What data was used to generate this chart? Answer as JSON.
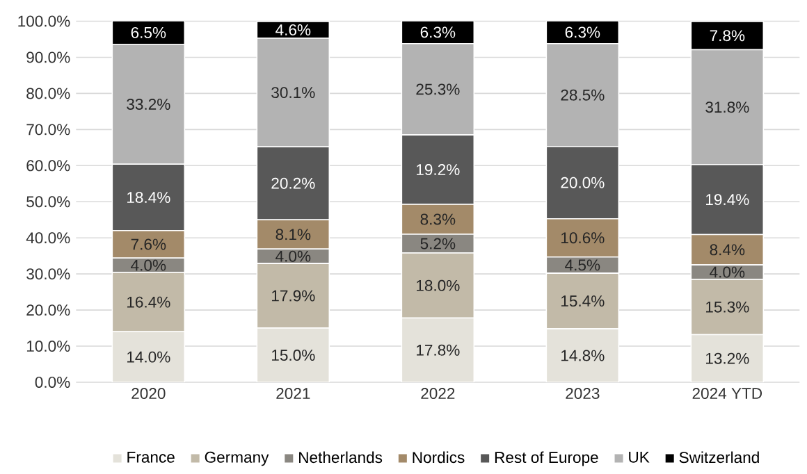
{
  "chart_data": {
    "type": "bar",
    "stacked": true,
    "categories": [
      "2020",
      "2021",
      "2022",
      "2023",
      "2024 YTD"
    ],
    "series": [
      {
        "name": "France",
        "color": "#e4e2da",
        "values": [
          14.0,
          15.0,
          17.8,
          14.8,
          13.2
        ],
        "value_labels": [
          "14.0%",
          "15.0%",
          "17.8%",
          "14.8%",
          "13.2%"
        ]
      },
      {
        "name": "Germany",
        "color": "#c2baa8",
        "values": [
          16.4,
          17.9,
          18.0,
          15.4,
          15.3
        ],
        "value_labels": [
          "16.4%",
          "17.9%",
          "18.0%",
          "15.4%",
          "15.3%"
        ]
      },
      {
        "name": "Netherlands",
        "color": "#8a8781",
        "values": [
          4.0,
          4.0,
          5.2,
          4.5,
          4.0
        ],
        "value_labels": [
          "4.0%",
          "4.0%",
          "5.2%",
          "4.5%",
          "4.0%"
        ]
      },
      {
        "name": "Nordics",
        "color": "#a38a69",
        "values": [
          7.6,
          8.1,
          8.3,
          10.6,
          8.4
        ],
        "value_labels": [
          "7.6%",
          "8.1%",
          "8.3%",
          "10.6%",
          "8.4%"
        ]
      },
      {
        "name": "Rest of Europe",
        "color": "#585858",
        "values": [
          18.4,
          20.2,
          19.2,
          20.0,
          19.4
        ],
        "value_labels": [
          "18.4%",
          "20.2%",
          "19.2%",
          "20.0%",
          "19.4%"
        ]
      },
      {
        "name": "UK",
        "color": "#b3b3b3",
        "values": [
          33.2,
          30.1,
          25.3,
          28.5,
          31.8
        ],
        "value_labels": [
          "33.2%",
          "30.1%",
          "25.3%",
          "28.5%",
          "31.8%"
        ]
      },
      {
        "name": "Switzerland",
        "color": "#000000",
        "values": [
          6.5,
          4.6,
          6.3,
          6.3,
          7.8
        ],
        "value_labels": [
          "6.5%",
          "4.6%",
          "6.3%",
          "6.3%",
          "7.8%"
        ]
      }
    ],
    "ylim": [
      0,
      100.1
    ],
    "yticks": [
      {
        "value": 0,
        "label": "0.0%"
      },
      {
        "value": 10,
        "label": "10.0%"
      },
      {
        "value": 20,
        "label": "20.0%"
      },
      {
        "value": 30,
        "label": "30.0%"
      },
      {
        "value": 40,
        "label": "40.0%"
      },
      {
        "value": 50,
        "label": "50.0%"
      },
      {
        "value": 60,
        "label": "60.0%"
      },
      {
        "value": 70,
        "label": "70.0%"
      },
      {
        "value": 80,
        "label": "80.0%"
      },
      {
        "value": 90,
        "label": "90.0%"
      },
      {
        "value": 100,
        "label": "100.0%"
      }
    ],
    "grid": "y",
    "legend": "bottom"
  }
}
